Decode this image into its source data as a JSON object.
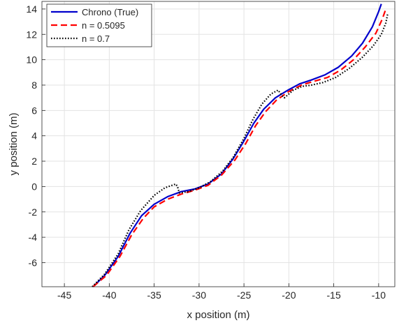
{
  "chart_data": {
    "type": "line",
    "title": "",
    "xlabel": "x position (m)",
    "ylabel": "y position (m)",
    "xlim": [
      -47.5,
      -8.2
    ],
    "ylim": [
      -7.9,
      14.6
    ],
    "xticks": [
      -45,
      -40,
      -35,
      -30,
      -25,
      -20,
      -15,
      -10
    ],
    "yticks": [
      -6,
      -4,
      -2,
      0,
      2,
      4,
      6,
      8,
      10,
      12,
      14
    ],
    "xtick_labels": [
      "-45",
      "-40",
      "-35",
      "-30",
      "-25",
      "-20",
      "-15",
      "-10"
    ],
    "ytick_labels": [
      "-6",
      "-4",
      "-2",
      "0",
      "2",
      "4",
      "6",
      "8",
      "10",
      "12",
      "14"
    ],
    "grid": true,
    "legend_position": "top-left",
    "series": [
      {
        "name": "Chrono (True)",
        "color": "#0000cc",
        "style": "solid",
        "x": [
          -41.8,
          -40.5,
          -39.0,
          -37.7,
          -36.4,
          -35.0,
          -33.5,
          -32.0,
          -30.5,
          -29.0,
          -27.5,
          -26.2,
          -25.0,
          -23.9,
          -22.8,
          -21.5,
          -20.1,
          -18.8,
          -17.5,
          -16.0,
          -14.5,
          -13.0,
          -11.8,
          -10.7,
          -10.0,
          -9.7
        ],
        "y": [
          -7.9,
          -7.0,
          -5.5,
          -3.7,
          -2.3,
          -1.4,
          -0.8,
          -0.4,
          -0.2,
          0.2,
          1.0,
          2.2,
          3.6,
          5.0,
          6.1,
          7.0,
          7.6,
          8.1,
          8.4,
          8.8,
          9.4,
          10.3,
          11.3,
          12.6,
          13.8,
          14.4
        ]
      },
      {
        "name": "n = 0.5095",
        "color": "#ff0000",
        "style": "dashed",
        "x": [
          -41.8,
          -40.3,
          -38.8,
          -37.5,
          -36.2,
          -35.0,
          -33.5,
          -32.0,
          -30.5,
          -29.0,
          -27.5,
          -26.0,
          -24.8,
          -23.7,
          -22.6,
          -21.4,
          -20.0,
          -18.6,
          -17.2,
          -15.7,
          -14.2,
          -12.8,
          -11.5,
          -10.3,
          -9.6,
          -9.2
        ],
        "y": [
          -7.9,
          -7.0,
          -5.5,
          -3.8,
          -2.5,
          -1.6,
          -1.0,
          -0.6,
          -0.3,
          0.1,
          0.9,
          2.1,
          3.4,
          4.8,
          5.9,
          6.8,
          7.5,
          8.0,
          8.3,
          8.6,
          9.2,
          10.0,
          11.0,
          12.1,
          13.2,
          14.0
        ]
      },
      {
        "name": "n = 0.7",
        "color": "#000000",
        "style": "dotted",
        "x": [
          -41.9,
          -40.5,
          -39.0,
          -37.8,
          -36.5,
          -35.0,
          -33.8,
          -32.6,
          -32.4,
          -32.2,
          -31.2,
          -30.0,
          -28.7,
          -27.4,
          -26.2,
          -25.0,
          -24.0,
          -23.0,
          -22.0,
          -21.2,
          -20.8,
          -20.5,
          -19.5,
          -18.5,
          -17.5,
          -16.2,
          -14.8,
          -13.3,
          -11.8,
          -10.6,
          -9.7,
          -9.2,
          -9.0
        ],
        "y": [
          -7.9,
          -6.9,
          -5.3,
          -3.4,
          -1.9,
          -0.7,
          -0.1,
          0.2,
          0.0,
          -0.5,
          -0.4,
          -0.1,
          0.4,
          1.2,
          2.3,
          3.8,
          5.3,
          6.5,
          7.3,
          7.6,
          7.2,
          7.0,
          7.6,
          7.9,
          8.0,
          8.2,
          8.6,
          9.3,
          10.2,
          11.1,
          12.0,
          12.9,
          13.6
        ]
      }
    ]
  }
}
